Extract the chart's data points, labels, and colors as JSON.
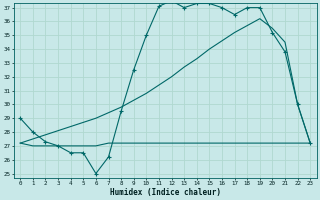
{
  "background_color": "#c8e8e8",
  "grid_color": "#b0d8d0",
  "line_color": "#006868",
  "xlabel": "Humidex (Indice chaleur)",
  "ylim": [
    25,
    37
  ],
  "xlim": [
    -0.5,
    23.5
  ],
  "yticks": [
    25,
    26,
    27,
    28,
    29,
    30,
    31,
    32,
    33,
    34,
    35,
    36,
    37
  ],
  "xticks": [
    0,
    1,
    2,
    3,
    4,
    5,
    6,
    7,
    8,
    9,
    10,
    11,
    12,
    13,
    14,
    15,
    16,
    17,
    18,
    19,
    20,
    21,
    22,
    23
  ],
  "line1_x": [
    0,
    1,
    2,
    3,
    4,
    5,
    6,
    7,
    8,
    9,
    10,
    11,
    12,
    13,
    14,
    15,
    16,
    17,
    18,
    19,
    20,
    21,
    22,
    23
  ],
  "line1_y": [
    29.0,
    28.0,
    27.3,
    27.0,
    26.5,
    26.5,
    25.0,
    26.2,
    29.5,
    32.5,
    35.0,
    37.1,
    37.5,
    37.0,
    37.3,
    37.3,
    37.0,
    36.5,
    37.0,
    37.0,
    35.2,
    33.8,
    30.0,
    27.2
  ],
  "line2_x": [
    0,
    1,
    2,
    3,
    4,
    5,
    6,
    7,
    8,
    9,
    10,
    11,
    12,
    13,
    14,
    15,
    16,
    17,
    18,
    19,
    20,
    23
  ],
  "line2_y": [
    27.2,
    27.0,
    27.0,
    27.0,
    27.0,
    27.0,
    27.0,
    27.2,
    27.2,
    27.2,
    27.2,
    27.2,
    27.2,
    27.2,
    27.2,
    27.2,
    27.2,
    27.2,
    27.2,
    27.2,
    27.2,
    27.2
  ],
  "line3_x": [
    0,
    1,
    2,
    3,
    4,
    5,
    6,
    7,
    8,
    9,
    10,
    11,
    12,
    13,
    14,
    15,
    16,
    17,
    18,
    19,
    20,
    21,
    22,
    23
  ],
  "line3_y": [
    27.2,
    27.5,
    27.8,
    28.1,
    28.4,
    28.7,
    29.0,
    29.4,
    29.8,
    30.3,
    30.8,
    31.4,
    32.0,
    32.7,
    33.3,
    34.0,
    34.6,
    35.2,
    35.7,
    36.2,
    35.5,
    34.5,
    30.0,
    27.2
  ]
}
